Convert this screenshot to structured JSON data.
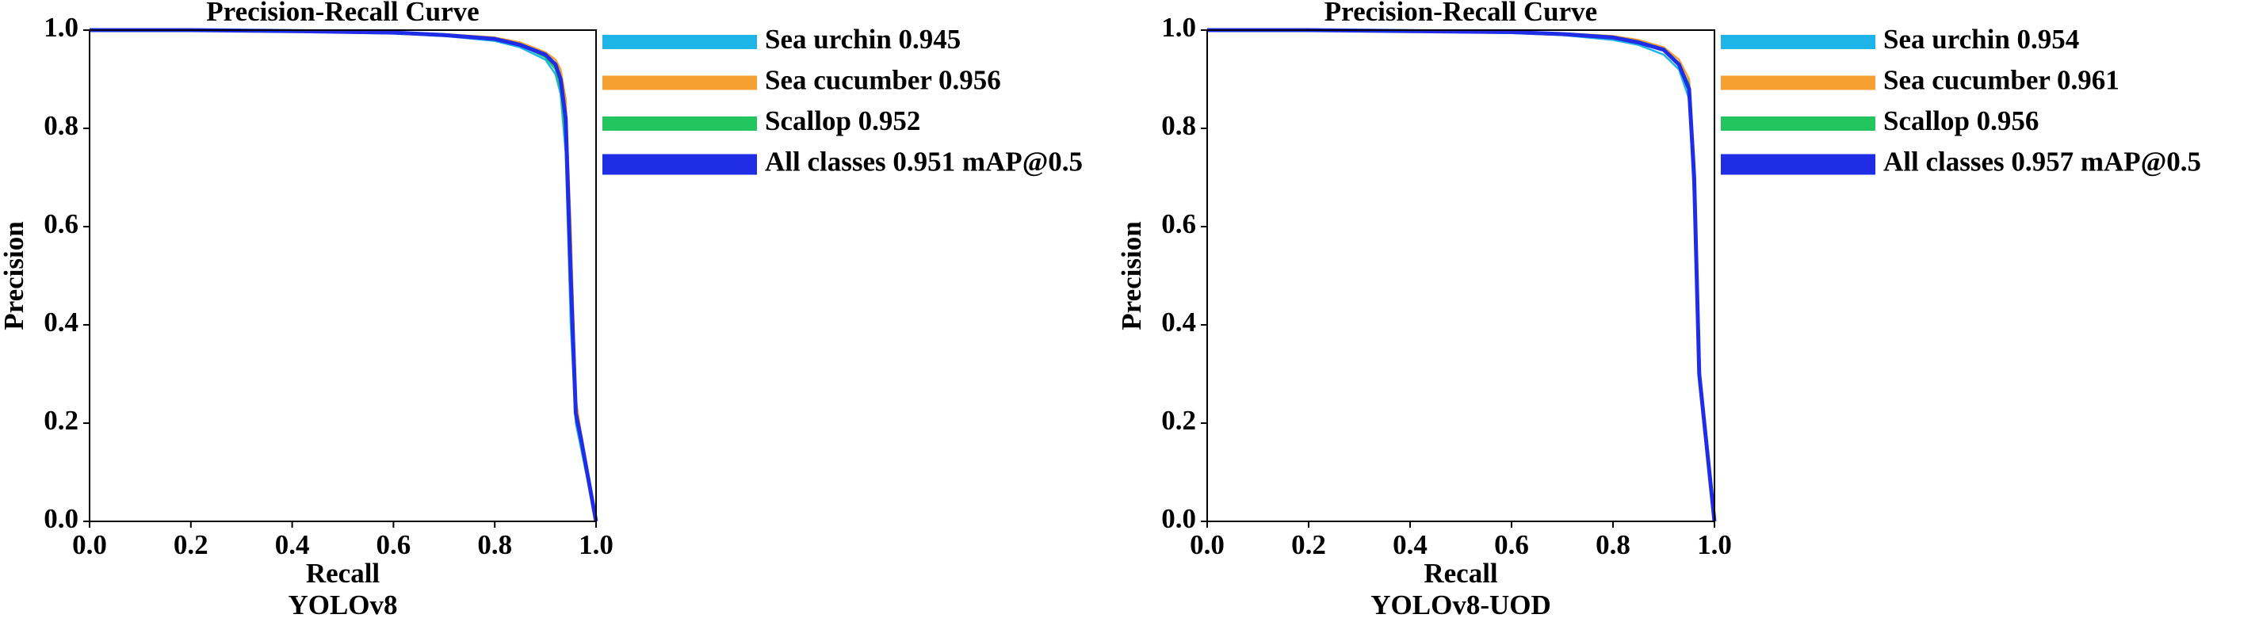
{
  "chart_data": [
    {
      "type": "line",
      "title": "Precision-Recall Curve",
      "xlabel": "Recall",
      "ylabel": "Precision",
      "caption": "YOLOv8",
      "x": [
        0,
        0.2,
        0.4,
        0.6,
        0.7,
        0.8,
        0.85,
        0.9,
        0.92,
        0.93,
        0.94,
        0.95,
        0.96,
        0.97,
        1.0
      ],
      "series": [
        {
          "name": "Sea urchin 0.945",
          "color": "#1fb4e8",
          "values": [
            1.0,
            1.0,
            0.997,
            0.993,
            0.988,
            0.978,
            0.965,
            0.94,
            0.91,
            0.87,
            0.75,
            0.4,
            0.2,
            0.15,
            0
          ]
        },
        {
          "name": "Sea cucumber 0.956",
          "color": "#f5a030",
          "values": [
            1.0,
            1.0,
            0.999,
            0.996,
            0.992,
            0.985,
            0.975,
            0.955,
            0.94,
            0.92,
            0.86,
            0.6,
            0.25,
            0.18,
            0
          ]
        },
        {
          "name": "Scallop 0.952",
          "color": "#22c55e",
          "values": [
            1.0,
            1.0,
            0.998,
            0.995,
            0.99,
            0.982,
            0.97,
            0.945,
            0.92,
            0.88,
            0.78,
            0.45,
            0.22,
            0.17,
            0
          ]
        },
        {
          "name": "All classes 0.951 mAP@0.5",
          "color": "#1f2ee6",
          "values": [
            1.0,
            1.0,
            0.998,
            0.995,
            0.99,
            0.982,
            0.97,
            0.95,
            0.93,
            0.9,
            0.82,
            0.5,
            0.22,
            0.17,
            0
          ]
        }
      ],
      "xlim": [
        0,
        1
      ],
      "ylim": [
        0,
        1
      ],
      "xticks": [
        {
          "value": 0,
          "label": "0.0"
        },
        0.2,
        0.4,
        0.6,
        0.8,
        {
          "value": 1,
          "label": "1.0"
        }
      ],
      "yticks": [
        {
          "value": 0,
          "label": "0.0"
        },
        0.2,
        0.4,
        0.6,
        0.8,
        {
          "value": 1,
          "label": "1.0"
        }
      ],
      "grid": false,
      "legend": "outside upper right"
    },
    {
      "type": "line",
      "title": "Precision-Recall Curve",
      "xlabel": "Recall",
      "ylabel": "Precision",
      "caption": "YOLOv8-UOD",
      "x": [
        0,
        0.2,
        0.4,
        0.6,
        0.7,
        0.8,
        0.85,
        0.9,
        0.93,
        0.95,
        0.96,
        0.97,
        0.98,
        1.0
      ],
      "series": [
        {
          "name": "Sea urchin 0.954",
          "color": "#1fb4e8",
          "values": [
            1.0,
            1.0,
            0.997,
            0.994,
            0.99,
            0.98,
            0.97,
            0.95,
            0.92,
            0.86,
            0.65,
            0.28,
            0.19,
            0
          ]
        },
        {
          "name": "Sea cucumber 0.961",
          "color": "#f5a030",
          "values": [
            1.0,
            1.0,
            0.999,
            0.997,
            0.994,
            0.988,
            0.98,
            0.965,
            0.94,
            0.9,
            0.74,
            0.32,
            0.21,
            0
          ]
        },
        {
          "name": "Scallop 0.956",
          "color": "#22c55e",
          "values": [
            1.0,
            1.0,
            0.998,
            0.996,
            0.992,
            0.985,
            0.975,
            0.96,
            0.93,
            0.89,
            0.72,
            0.3,
            0.2,
            0
          ]
        },
        {
          "name": "All classes 0.957 mAP@0.5",
          "color": "#1f2ee6",
          "values": [
            1.0,
            1.0,
            0.998,
            0.996,
            0.992,
            0.985,
            0.975,
            0.96,
            0.93,
            0.88,
            0.7,
            0.3,
            0.2,
            0
          ]
        }
      ],
      "xlim": [
        0,
        1
      ],
      "ylim": [
        0,
        1
      ],
      "xticks": [
        {
          "value": 0,
          "label": "0.0"
        },
        0.2,
        0.4,
        0.6,
        0.8,
        {
          "value": 1,
          "label": "1.0"
        }
      ],
      "yticks": [
        {
          "value": 0,
          "label": "0.0"
        },
        0.2,
        0.4,
        0.6,
        0.8,
        {
          "value": 1,
          "label": "1.0"
        }
      ],
      "grid": false,
      "legend": "outside upper right"
    }
  ]
}
